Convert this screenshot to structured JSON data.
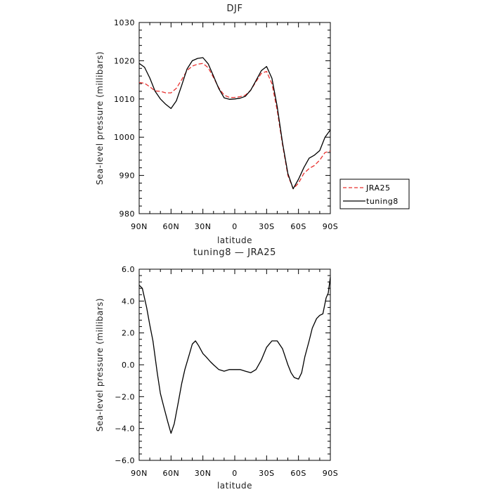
{
  "chart_data": [
    {
      "type": "line",
      "title": "DJF",
      "xlabel": "latitude",
      "ylabel": "Sea-level pressure (millibars)",
      "x_ticks": [
        90,
        60,
        30,
        0,
        -30,
        -60,
        -90
      ],
      "x_tick_labels": [
        "90N",
        "60N",
        "30N",
        "0",
        "30S",
        "60S",
        "90S"
      ],
      "xlim": [
        90,
        -90
      ],
      "ylim": [
        980,
        1030
      ],
      "y_ticks": [
        980,
        990,
        1000,
        1010,
        1020,
        1030
      ],
      "y_tick_labels": [
        "980",
        "990",
        "1000",
        "1010",
        "1020",
        "1030"
      ],
      "legend_position": "right",
      "series": [
        {
          "name": "JRA25",
          "color": "#e8312f",
          "dash": "dashed",
          "x": [
            90,
            85,
            80,
            75,
            70,
            65,
            60,
            55,
            50,
            45,
            40,
            35,
            30,
            25,
            20,
            15,
            10,
            5,
            0,
            -5,
            -10,
            -15,
            -20,
            -25,
            -30,
            -35,
            -40,
            -45,
            -50,
            -55,
            -60,
            -65,
            -70,
            -75,
            -80,
            -85,
            -90
          ],
          "values": [
            1014.3,
            1014.1,
            1013.2,
            1012.1,
            1012.0,
            1011.6,
            1011.6,
            1012.8,
            1015.0,
            1017.4,
            1018.6,
            1019.1,
            1019.3,
            1018.2,
            1015.6,
            1012.9,
            1011.0,
            1010.4,
            1010.4,
            1010.6,
            1011.0,
            1012.3,
            1014.5,
            1016.7,
            1017.2,
            1014.0,
            1007.0,
            998.0,
            990.0,
            986.5,
            988.0,
            990.5,
            991.8,
            992.6,
            994.0,
            996.0,
            996.4
          ]
        },
        {
          "name": "tuning8",
          "color": "#000000",
          "dash": "solid",
          "x": [
            90,
            85,
            80,
            75,
            70,
            65,
            60,
            55,
            50,
            45,
            40,
            35,
            30,
            25,
            20,
            15,
            10,
            5,
            0,
            -5,
            -10,
            -15,
            -20,
            -25,
            -30,
            -35,
            -40,
            -45,
            -50,
            -55,
            -60,
            -65,
            -70,
            -75,
            -80,
            -85,
            -90
          ],
          "values": [
            1019.3,
            1018.3,
            1015.5,
            1012.0,
            1010.0,
            1008.6,
            1007.5,
            1009.5,
            1013.5,
            1017.8,
            1020.0,
            1020.6,
            1020.8,
            1019.2,
            1016.0,
            1012.7,
            1010.3,
            1009.9,
            1010.0,
            1010.2,
            1010.7,
            1012.3,
            1014.8,
            1017.4,
            1018.5,
            1015.4,
            1008.0,
            998.5,
            990.5,
            986.5,
            989.0,
            992.0,
            994.5,
            995.3,
            996.5,
            1000.0,
            1001.9
          ]
        }
      ]
    },
    {
      "type": "line",
      "title": "tuning8 — JRA25",
      "xlabel": "latitude",
      "ylabel": "Sea-level pressure (millibars)",
      "x_ticks": [
        90,
        60,
        30,
        0,
        -30,
        -60,
        -90
      ],
      "x_tick_labels": [
        "90N",
        "60N",
        "30N",
        "0",
        "30S",
        "60S",
        "90S"
      ],
      "xlim": [
        90,
        -90
      ],
      "ylim": [
        -6,
        6
      ],
      "y_ticks": [
        -6,
        -4,
        -2,
        0,
        2,
        4,
        6
      ],
      "y_tick_labels": [
        "−6.0",
        "−4.0",
        "−2.0",
        "0.0",
        "2.0",
        "4.0",
        "6.0"
      ],
      "series": [
        {
          "name": "tuning8 — JRA25",
          "color": "#000000",
          "dash": "solid",
          "x": [
            90,
            87,
            83,
            80,
            77,
            73,
            70,
            67,
            63,
            60,
            57,
            53,
            50,
            47,
            43,
            40,
            37,
            34,
            30,
            27,
            23,
            20,
            15,
            10,
            5,
            0,
            -5,
            -10,
            -15,
            -20,
            -25,
            -30,
            -35,
            -40,
            -45,
            -50,
            -53,
            -56,
            -60,
            -63,
            -66,
            -70,
            -73,
            -77,
            -80,
            -83,
            -86,
            -88,
            -90
          ],
          "values": [
            5.0,
            4.8,
            3.6,
            2.5,
            1.5,
            -0.5,
            -1.8,
            -2.6,
            -3.6,
            -4.3,
            -3.7,
            -2.3,
            -1.2,
            -0.3,
            0.6,
            1.3,
            1.5,
            1.2,
            0.7,
            0.5,
            0.2,
            0.0,
            -0.3,
            -0.4,
            -0.3,
            -0.3,
            -0.3,
            -0.4,
            -0.5,
            -0.3,
            0.3,
            1.1,
            1.5,
            1.5,
            1.0,
            0.0,
            -0.5,
            -0.8,
            -0.9,
            -0.5,
            0.5,
            1.5,
            2.3,
            2.9,
            3.1,
            3.2,
            4.2,
            4.5,
            5.5
          ]
        }
      ]
    }
  ]
}
